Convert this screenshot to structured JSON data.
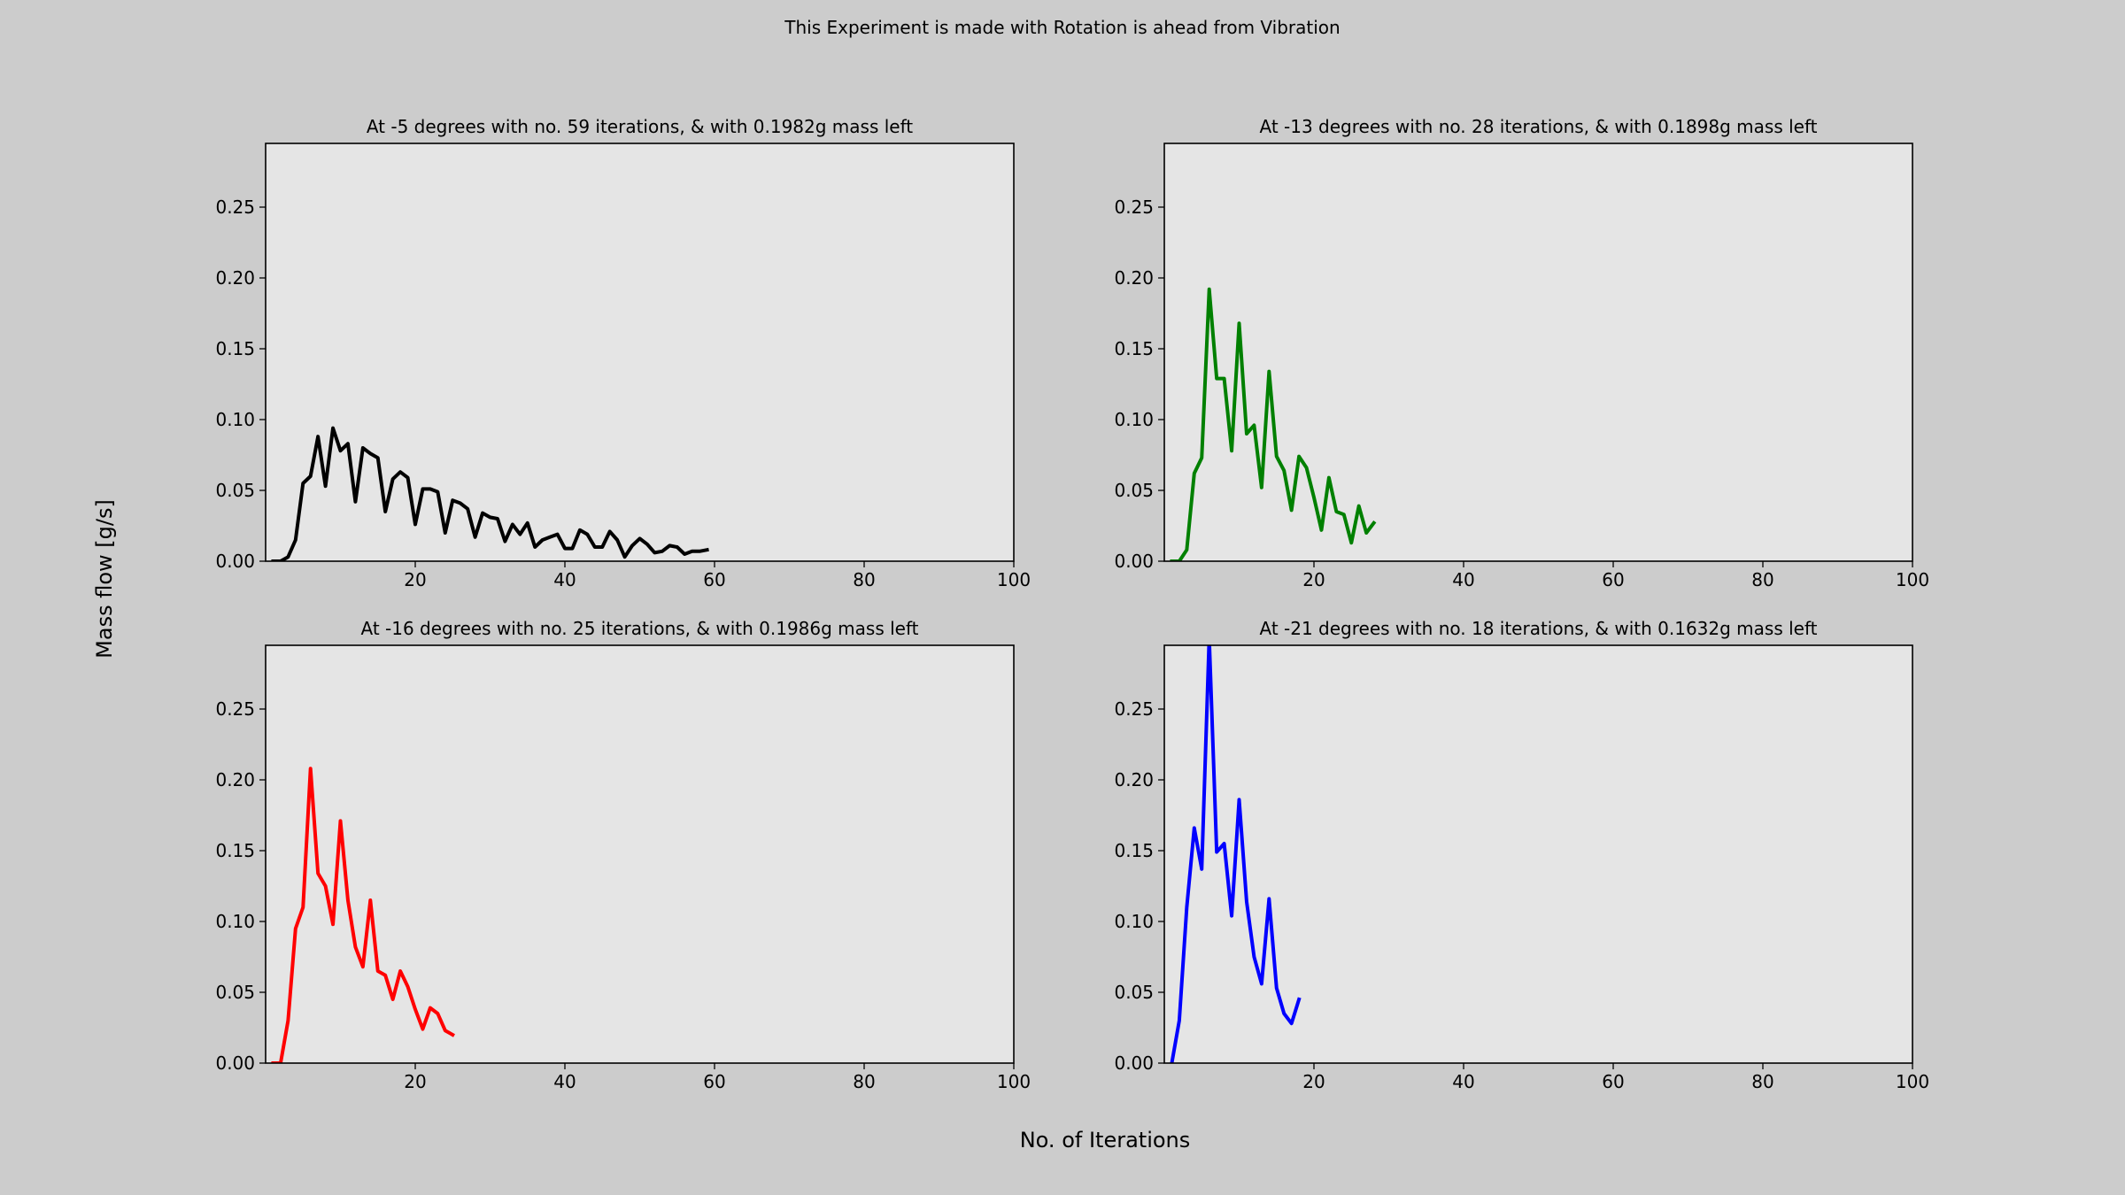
{
  "figure": {
    "suptitle": "This Experiment is made with Rotation is ahead from Vibration",
    "xlabel": "No. of Iterations",
    "ylabel": "Mass flow [g/s]",
    "background": "#cccccc",
    "axes_background": "#e5e5e5"
  },
  "chart_data": [
    {
      "type": "line",
      "title": "At -5 degrees with no. 59 iterations, & with 0.1982g mass left",
      "color": "#000000",
      "xlim": [
        0,
        100
      ],
      "ylim": [
        0,
        0.295
      ],
      "xticks": [
        20,
        40,
        60,
        80,
        100
      ],
      "yticks": [
        0.0,
        0.05,
        0.1,
        0.15,
        0.2,
        0.25
      ],
      "ytick_labels": [
        "0.00",
        "0.05",
        "0.10",
        "0.15",
        "0.20",
        "0.25"
      ],
      "grid": false,
      "series": [
        {
          "x": [
            1,
            2,
            3,
            4,
            5,
            6,
            7,
            8,
            9,
            10,
            11,
            12,
            13,
            14,
            15,
            16,
            17,
            18,
            19,
            20,
            21,
            22,
            23,
            24,
            25,
            26,
            27,
            28,
            29,
            30,
            31,
            32,
            33,
            34,
            35,
            36,
            37,
            38,
            39,
            40,
            41,
            42,
            43,
            44,
            45,
            46,
            47,
            48,
            49,
            50,
            51,
            52,
            53,
            54,
            55,
            56,
            57,
            58,
            59
          ],
          "y": [
            0.0,
            0.0,
            0.003,
            0.015,
            0.055,
            0.06,
            0.088,
            0.053,
            0.094,
            0.078,
            0.083,
            0.042,
            0.08,
            0.076,
            0.073,
            0.035,
            0.058,
            0.063,
            0.059,
            0.026,
            0.051,
            0.051,
            0.049,
            0.02,
            0.043,
            0.041,
            0.037,
            0.017,
            0.034,
            0.031,
            0.03,
            0.014,
            0.026,
            0.019,
            0.027,
            0.01,
            0.015,
            0.017,
            0.019,
            0.009,
            0.009,
            0.022,
            0.019,
            0.01,
            0.01,
            0.021,
            0.015,
            0.003,
            0.011,
            0.016,
            0.012,
            0.006,
            0.007,
            0.011,
            0.01,
            0.005,
            0.007,
            0.007,
            0.008
          ]
        }
      ]
    },
    {
      "type": "line",
      "title": "At -13 degrees with no. 28 iterations, & with 0.1898g mass left",
      "color": "#008000",
      "xlim": [
        0,
        100
      ],
      "ylim": [
        0,
        0.295
      ],
      "xticks": [
        20,
        40,
        60,
        80,
        100
      ],
      "yticks": [
        0.0,
        0.05,
        0.1,
        0.15,
        0.2,
        0.25
      ],
      "ytick_labels": [
        "0.00",
        "0.05",
        "0.10",
        "0.15",
        "0.20",
        "0.25"
      ],
      "grid": false,
      "series": [
        {
          "x": [
            1,
            2,
            3,
            4,
            5,
            6,
            7,
            8,
            9,
            10,
            11,
            12,
            13,
            14,
            15,
            16,
            17,
            18,
            19,
            20,
            21,
            22,
            23,
            24,
            25,
            26,
            27,
            28
          ],
          "y": [
            0.0,
            0.0,
            0.008,
            0.062,
            0.073,
            0.192,
            0.129,
            0.129,
            0.078,
            0.168,
            0.09,
            0.096,
            0.052,
            0.134,
            0.074,
            0.064,
            0.036,
            0.074,
            0.066,
            0.045,
            0.022,
            0.059,
            0.035,
            0.033,
            0.013,
            0.039,
            0.02,
            0.027
          ]
        }
      ]
    },
    {
      "type": "line",
      "title": "At -16 degrees with no. 25 iterations, & with 0.1986g mass left",
      "color": "#ff0000",
      "xlim": [
        0,
        100
      ],
      "ylim": [
        0,
        0.295
      ],
      "xticks": [
        20,
        40,
        60,
        80,
        100
      ],
      "yticks": [
        0.0,
        0.05,
        0.1,
        0.15,
        0.2,
        0.25
      ],
      "ytick_labels": [
        "0.00",
        "0.05",
        "0.10",
        "0.15",
        "0.20",
        "0.25"
      ],
      "grid": false,
      "series": [
        {
          "x": [
            1,
            2,
            3,
            4,
            5,
            6,
            7,
            8,
            9,
            10,
            11,
            12,
            13,
            14,
            15,
            16,
            17,
            18,
            19,
            20,
            21,
            22,
            23,
            24,
            25
          ],
          "y": [
            0.0,
            0.0,
            0.03,
            0.095,
            0.11,
            0.208,
            0.134,
            0.125,
            0.098,
            0.171,
            0.115,
            0.082,
            0.068,
            0.115,
            0.065,
            0.062,
            0.045,
            0.065,
            0.054,
            0.038,
            0.024,
            0.039,
            0.035,
            0.023,
            0.02
          ]
        }
      ]
    },
    {
      "type": "line",
      "title": "At -21 degrees with no. 18 iterations, & with 0.1632g mass left",
      "color": "#0000ff",
      "xlim": [
        0,
        100
      ],
      "ylim": [
        0,
        0.295
      ],
      "xticks": [
        20,
        40,
        60,
        80,
        100
      ],
      "yticks": [
        0.0,
        0.05,
        0.1,
        0.15,
        0.2,
        0.25
      ],
      "ytick_labels": [
        "0.00",
        "0.05",
        "0.10",
        "0.15",
        "0.20",
        "0.25"
      ],
      "grid": false,
      "series": [
        {
          "x": [
            1,
            2,
            3,
            4,
            5,
            6,
            7,
            8,
            9,
            10,
            11,
            12,
            13,
            14,
            15,
            16,
            17,
            18
          ],
          "y": [
            0.0,
            0.03,
            0.11,
            0.166,
            0.137,
            0.3,
            0.149,
            0.155,
            0.104,
            0.186,
            0.114,
            0.075,
            0.056,
            0.116,
            0.053,
            0.035,
            0.028,
            0.045
          ]
        }
      ]
    }
  ]
}
